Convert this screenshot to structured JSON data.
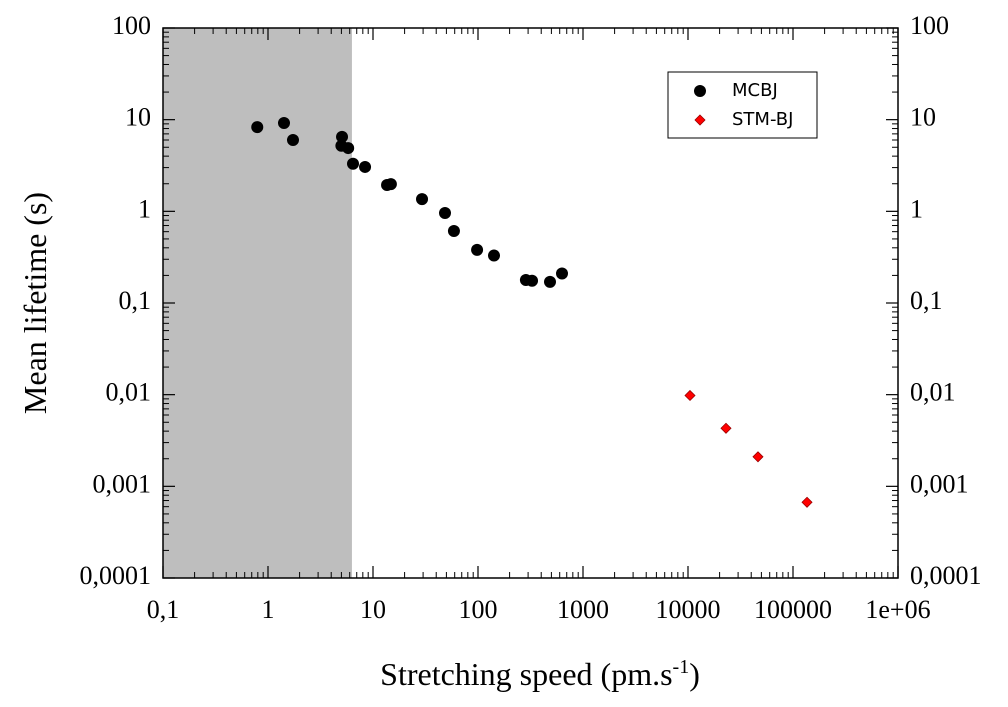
{
  "chart_data": {
    "type": "scatter",
    "x_label": "Stretching speed (pm.s",
    "x_label_exponent": "-1",
    "x_label_end": ")",
    "y_label": "Mean lifetime (s)",
    "x_log": true,
    "y_log": true,
    "xlim": [
      0.1,
      1000000
    ],
    "ylim": [
      0.0001,
      100
    ],
    "xticks": [
      {
        "value": 0.1,
        "label": "0,1"
      },
      1,
      10,
      100,
      1000,
      10000,
      100000,
      {
        "value": 1000000,
        "label": "1e+06"
      }
    ],
    "yticks": [
      {
        "value": 0.0001,
        "label": "0,0001"
      },
      {
        "value": 0.001,
        "label": "0,001"
      },
      {
        "value": 0.01,
        "label": "0,01"
      },
      {
        "value": 0.1,
        "label": "0,1"
      },
      1,
      10,
      100
    ],
    "shaded_region": {
      "xlim": [
        0.1,
        6.3
      ],
      "color": "#bebebe"
    },
    "legend": "upper right",
    "series": [
      {
        "name": "MCBJ",
        "color": "#000000",
        "marker": "circle",
        "x": [
          0.79,
          1.42,
          1.73,
          5.07,
          5.0,
          5.8,
          6.45,
          8.4,
          13.6,
          14.8,
          29.3,
          48.5,
          59,
          98,
          142,
          286,
          327,
          485,
          631
        ],
        "values": [
          8.3,
          9.2,
          6.0,
          6.5,
          5.2,
          4.9,
          3.3,
          3.05,
          1.94,
          1.98,
          1.36,
          0.96,
          0.61,
          0.38,
          0.33,
          0.178,
          0.175,
          0.17,
          0.21
        ]
      },
      {
        "name": "STM-BJ",
        "color": "#ff0000",
        "marker": "diamond",
        "x": [
          10450,
          23000,
          46400,
          136000
        ],
        "values": [
          0.0098,
          0.0043,
          0.0021,
          0.00067
        ]
      }
    ]
  }
}
